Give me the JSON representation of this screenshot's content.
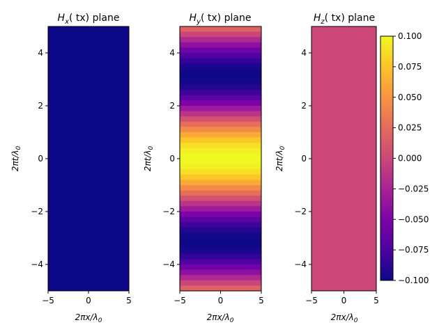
{
  "chart_data": [
    {
      "type": "heatmap",
      "title_main": "H",
      "title_sub": "x",
      "title_rest": "( tx) plane",
      "xlabel_main": "2πx/λ",
      "xlabel_sub": "0",
      "ylabel_main": "2πt/λ",
      "ylabel_sub": "0",
      "xlim": [
        -5,
        5
      ],
      "ylim": [
        -5,
        5
      ],
      "xticks": [
        "−5",
        "0",
        "5"
      ],
      "yticks": [
        "4",
        "2",
        "0",
        "−2",
        "−4"
      ],
      "field": "constant",
      "value": -0.1
    },
    {
      "type": "heatmap",
      "title_main": "H",
      "title_sub": "y",
      "title_rest": "( tx) plane",
      "xlabel_main": "2πx/λ",
      "xlabel_sub": "0",
      "ylabel_main": "2πt/λ",
      "ylabel_sub": "0",
      "xlim": [
        -5,
        5
      ],
      "ylim": [
        -5,
        5
      ],
      "xticks": [
        "−5",
        "0",
        "5"
      ],
      "yticks": [
        "4",
        "2",
        "0",
        "−2",
        "−4"
      ],
      "field": "0.1*cos(t)",
      "bands": 50
    },
    {
      "type": "heatmap",
      "title_main": "H",
      "title_sub": "z",
      "title_rest": "( tx) plane",
      "xlabel_main": "2πx/λ",
      "xlabel_sub": "0",
      "ylabel_main": "2πt/λ",
      "ylabel_sub": "0",
      "xlim": [
        -5,
        5
      ],
      "ylim": [
        -5,
        5
      ],
      "xticks": [
        "−5",
        "0",
        "5"
      ],
      "yticks": [
        "4",
        "2",
        "0",
        "−2",
        "−4"
      ],
      "field": "constant",
      "value": 0.0
    }
  ],
  "colorbar": {
    "colormap": "plasma",
    "range": [
      -0.1,
      0.1
    ],
    "ticks": [
      "0.100",
      "0.075",
      "0.050",
      "0.025",
      "0.000",
      "−0.025",
      "−0.050",
      "−0.075",
      "−0.100"
    ]
  }
}
